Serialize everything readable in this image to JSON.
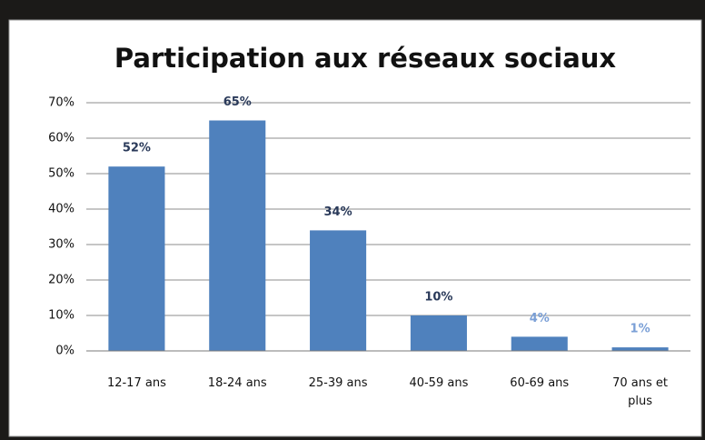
{
  "chart_data": {
    "type": "bar",
    "title": "Participation aux réseaux sociaux",
    "categories": [
      "12-17 ans",
      "18-24 ans",
      "25-39 ans",
      "40-59 ans",
      "60-69 ans",
      "70 ans et plus"
    ],
    "values": [
      52,
      65,
      34,
      10,
      4,
      1
    ],
    "value_labels": [
      "52%",
      "65%",
      "34%",
      "10%",
      "4%",
      "1%"
    ],
    "value_label_colors": [
      "#2a3a5a",
      "#2a3a5a",
      "#2a3a5a",
      "#2a3a5a",
      "#7a9fd6",
      "#7a9fd6"
    ],
    "color": "#4f81bd",
    "ylim": [
      0,
      70
    ],
    "yticks": [
      {
        "value": 0,
        "label": "0%"
      },
      {
        "value": 10,
        "label": "10%"
      },
      {
        "value": 20,
        "label": "20%"
      },
      {
        "value": 30,
        "label": "30%"
      },
      {
        "value": 40,
        "label": "40%"
      },
      {
        "value": 50,
        "label": "50%"
      },
      {
        "value": 60,
        "label": "60%"
      },
      {
        "value": 70,
        "label": "70%"
      }
    ],
    "grid": true
  }
}
